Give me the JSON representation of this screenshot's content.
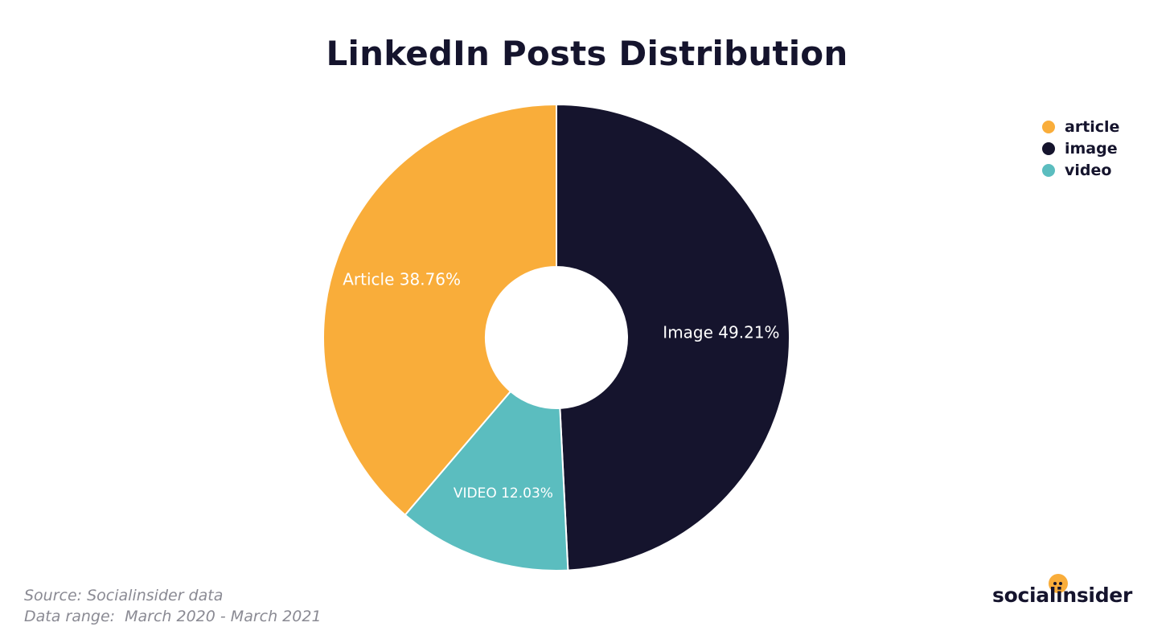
{
  "chart_data": {
    "type": "pie",
    "title": "LinkedIn Posts Distribution",
    "slices": [
      {
        "label": "Image 49.21%",
        "value": 49.21,
        "color": "#15142d"
      },
      {
        "label": "VIDEO 12.03%",
        "value": 12.03,
        "color": "#5bbdbf"
      },
      {
        "label": "Article 38.76%",
        "value": 38.76,
        "color": "#f9ad3a"
      }
    ],
    "legend": {
      "placement": "top-right",
      "entries": [
        {
          "label": "article",
          "color": "#f9ad3a"
        },
        {
          "label": "image",
          "color": "#15142d"
        },
        {
          "label": "video",
          "color": "#5bbdbf"
        }
      ]
    }
  },
  "footer": {
    "source": "Source: Socialinsider data",
    "range": "Data range:  March 2020 - March 2021"
  },
  "logo": {
    "text": "socialinsider"
  }
}
